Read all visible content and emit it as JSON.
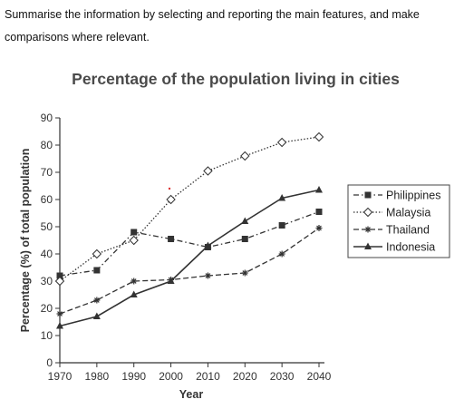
{
  "instructions": {
    "line1": "Summarise the information by selecting and reporting the main features, and make",
    "line2": "comparisons where relevant."
  },
  "chart_data": {
    "type": "line",
    "title": "Percentage of the population living in cities",
    "xlabel": "Year",
    "ylabel": "Percentage (%) of total population",
    "x": [
      1970,
      1980,
      1990,
      2000,
      2010,
      2020,
      2030,
      2040
    ],
    "ylim": [
      0,
      90
    ],
    "yticks": [
      0,
      10,
      20,
      30,
      40,
      50,
      60,
      70,
      80,
      90
    ],
    "grid": false,
    "legend_position": "right",
    "series": [
      {
        "name": "Philippines",
        "marker": "square",
        "dash": "dashdot",
        "values": [
          32,
          34,
          48,
          45.5,
          42.5,
          45.5,
          50.5,
          55.5
        ]
      },
      {
        "name": "Malaysia",
        "marker": "diamond-open",
        "dash": "dotted",
        "values": [
          30,
          40,
          45,
          60,
          70.5,
          76,
          81,
          83
        ]
      },
      {
        "name": "Thailand",
        "marker": "star",
        "dash": "dashed",
        "values": [
          18,
          23,
          30,
          30.5,
          32,
          33,
          40,
          49.5
        ]
      },
      {
        "name": "Indonesia",
        "marker": "triangle",
        "dash": "solid",
        "values": [
          13.5,
          17,
          25,
          30,
          43,
          52,
          60.5,
          63.5
        ]
      }
    ]
  }
}
